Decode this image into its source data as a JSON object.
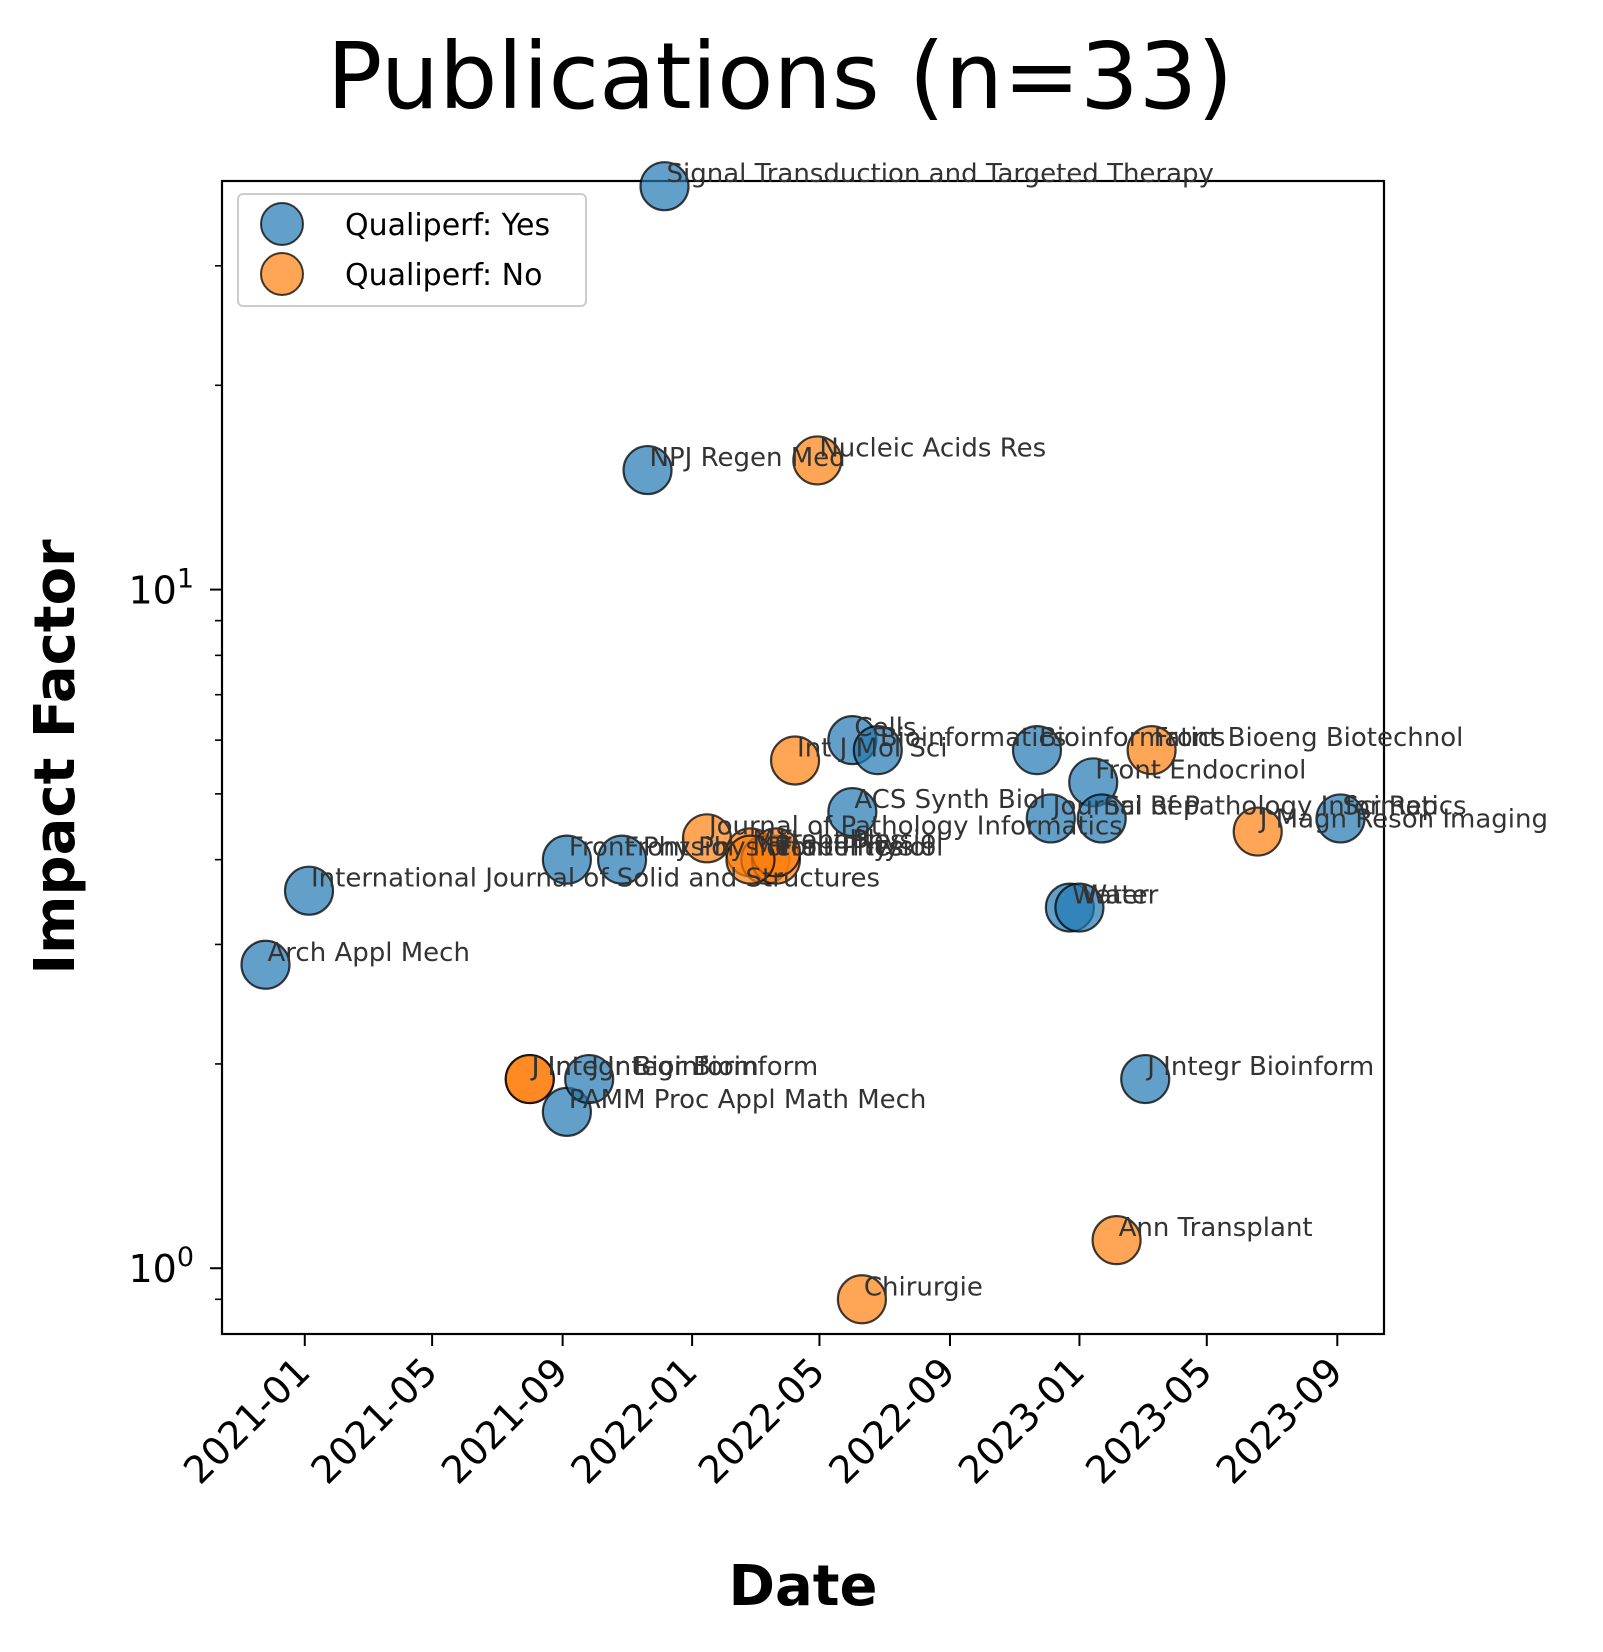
{
  "chart_data": {
    "type": "scatter",
    "title": "Publications (n=33)",
    "xlabel": "Date",
    "ylabel": "Impact Factor",
    "yscale": "log",
    "xlim": [
      "2020-10-15",
      "2023-10-15"
    ],
    "ylim": [
      0.8,
      40
    ],
    "x_ticks": [
      "2021-01",
      "2021-05",
      "2021-09",
      "2022-01",
      "2022-05",
      "2022-09",
      "2023-01",
      "2023-05",
      "2023-09"
    ],
    "y_ticks": [
      {
        "value": 1,
        "base": "10",
        "exp": "0"
      },
      {
        "value": 10,
        "base": "10",
        "exp": "1"
      }
    ],
    "grid": false,
    "legend_position": "upper-left",
    "colors": {
      "Qualiperf: Yes": "#1f77b4",
      "Qualiperf: No": "#ff7f0e"
    },
    "series": [
      {
        "name": "Qualiperf: Yes",
        "points": [
          {
            "x": "2020-11-25",
            "y": 2.8,
            "label": "Arch Appl Mech"
          },
          {
            "x": "2021-01-05",
            "y": 3.6,
            "label": "International Journal of Solid and Structures"
          },
          {
            "x": "2021-09-05",
            "y": 1.7,
            "label": "PAMM Proc Appl Math Mech"
          },
          {
            "x": "2021-09-05",
            "y": 4.0,
            "label": "Front Physiol"
          },
          {
            "x": "2021-09-26",
            "y": 1.9,
            "label": "J Integr Bioinform"
          },
          {
            "x": "2021-10-27",
            "y": 4.0,
            "label": "Front Physiol"
          },
          {
            "x": "2021-11-20",
            "y": 15.0,
            "label": "NPJ Regen Med"
          },
          {
            "x": "2021-12-06",
            "y": 39.3,
            "label": "Signal Transduction and Targeted Therapy"
          },
          {
            "x": "2022-06-01",
            "y": 6.0,
            "label": "Cells"
          },
          {
            "x": "2022-06-01",
            "y": 4.7,
            "label": "ACS Synth Biol"
          },
          {
            "x": "2022-06-25",
            "y": 5.8,
            "label": "Bioinformatics"
          },
          {
            "x": "2022-11-22",
            "y": 5.8,
            "label": "Bioinformatics"
          },
          {
            "x": "2022-12-05",
            "y": 4.6,
            "label": "Journal of Pathology Informatics"
          },
          {
            "x": "2022-12-23",
            "y": 3.4,
            "label": "Water"
          },
          {
            "x": "2023-01-01",
            "y": 3.4,
            "label": "Water"
          },
          {
            "x": "2023-01-14",
            "y": 5.2,
            "label": "Front Endocrinol"
          },
          {
            "x": "2023-01-22",
            "y": 4.6,
            "label": "Sci Rep"
          },
          {
            "x": "2023-03-04",
            "y": 1.9,
            "label": "J Integr Bioinform"
          },
          {
            "x": "2023-09-04",
            "y": 4.6,
            "label": "Sci Rep"
          }
        ]
      },
      {
        "name": "Qualiperf: No",
        "points": [
          {
            "x": "2021-08-01",
            "y": 1.9,
            "label": "J Integr Bioinform"
          },
          {
            "x": "2021-08-01",
            "y": 1.9,
            "label": "J Integr Bioinform"
          },
          {
            "x": "2022-01-15",
            "y": 4.3,
            "label": "Journal of Pathology Informatics"
          },
          {
            "x": "2022-02-25",
            "y": 4.1,
            "label": "Metabolites"
          },
          {
            "x": "2022-03-11",
            "y": 4.0,
            "label": "Front Physiol"
          },
          {
            "x": "2022-03-21",
            "y": 4.0,
            "label": "Front Physiol"
          },
          {
            "x": "2022-04-08",
            "y": 5.6,
            "label": "Int J Mol Sci"
          },
          {
            "x": "2022-04-29",
            "y": 15.5,
            "label": "Nucleic Acids Res"
          },
          {
            "x": "2022-06-10",
            "y": 0.9,
            "label": "Chirurgie"
          },
          {
            "x": "2023-02-05",
            "y": 1.1,
            "label": "Ann Transplant"
          },
          {
            "x": "2023-03-10",
            "y": 5.8,
            "label": "Front Bioeng Biotechnol"
          },
          {
            "x": "2023-06-18",
            "y": 4.4,
            "label": "J Magn Reson Imaging"
          },
          {
            "x": "2022-03-21",
            "y": 4.1,
            "label": "Front Physiol"
          },
          {
            "x": "2022-02-25",
            "y": 4.0,
            "label": "Metabolites"
          }
        ]
      }
    ]
  }
}
